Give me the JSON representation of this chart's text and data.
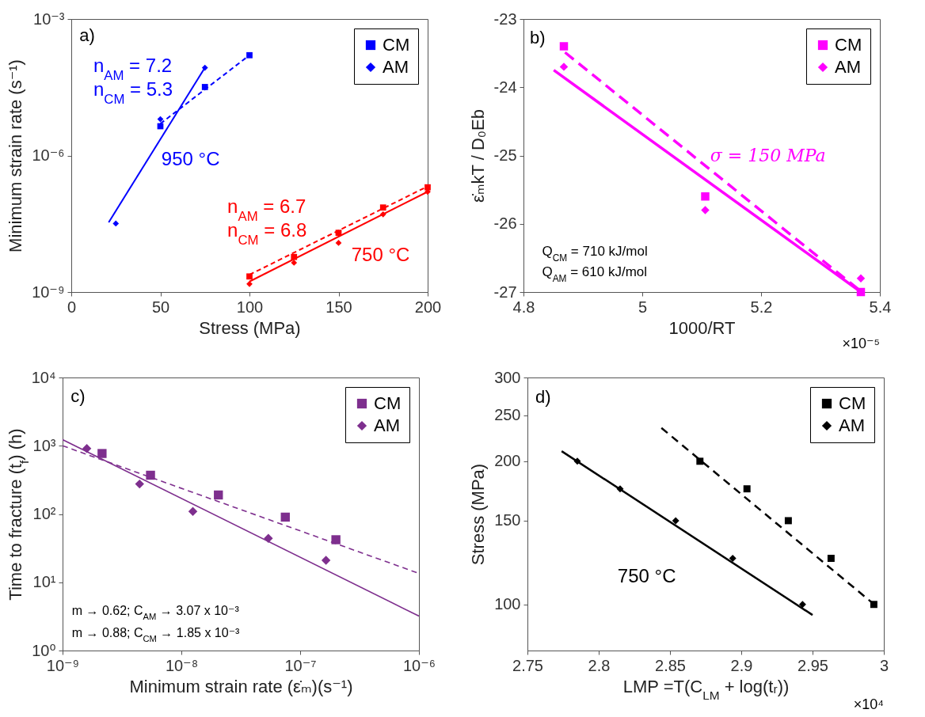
{
  "chart_data": [
    {
      "type": "scatter",
      "xlabel": "Stress (MPa)",
      "ylabel": "Minimum strain rate (s⁻¹)",
      "log": "y",
      "legend": "top right",
      "xlim": [
        0,
        200
      ],
      "ylim": [
        1e-09,
        0.001
      ],
      "xticks": [
        0,
        50,
        100,
        150,
        200
      ],
      "yticks": [
        {
          "value": 1e-09,
          "label": "10⁻⁹"
        },
        {
          "value": 1e-06,
          "label": "10⁻⁶"
        },
        {
          "value": 0.001,
          "label": "10⁻³"
        }
      ],
      "annotations": [
        "a)",
        "n$_{AM}$ = 7.2",
        "n$_{CM}$ = 5.3",
        "950 °C",
        "n$_{AM}$ = 6.7",
        "n$_{CM}$ = 6.8",
        "750 °C"
      ],
      "series": [
        {
          "name": "CM",
          "marker": "square",
          "color": "#0000ff",
          "x": [
            50,
            75,
            100
          ],
          "values": [
            4.4e-06,
            3.2e-05,
            0.00016
          ]
        },
        {
          "name": "AM",
          "marker": "diamond",
          "color": "#0000ff",
          "x": [
            25,
            50,
            75
          ],
          "values": [
            3.2e-08,
            6.3e-06,
            8.5e-05
          ]
        },
        {
          "marker": "square",
          "color": "#ff0000",
          "x": [
            100,
            125,
            150,
            175,
            200
          ],
          "values": [
            2.2e-09,
            5.9e-09,
            2e-08,
            7.2e-08,
            2e-07
          ]
        },
        {
          "marker": "diamond",
          "color": "#ff0000",
          "x": [
            100,
            125,
            150,
            175,
            200
          ],
          "values": [
            1.5e-09,
            4.4e-09,
            1.2e-08,
            5.1e-08,
            1.6e-07
          ]
        },
        {
          "type": "line",
          "line_style": "dashed",
          "color": "#0000ff",
          "x": [
            50,
            100
          ],
          "values": [
            5e-06,
            0.00016
          ]
        },
        {
          "type": "line",
          "line_style": "solid",
          "color": "#0000ff",
          "x": [
            21,
            75
          ],
          "values": [
            3.4e-08,
            8.5e-05
          ]
        },
        {
          "type": "line",
          "line_style": "dashed",
          "color": "#ff0000",
          "x": [
            100,
            200
          ],
          "values": [
            2.4e-09,
            2.1e-07
          ]
        },
        {
          "type": "line",
          "line_style": "solid",
          "color": "#ff0000",
          "x": [
            100,
            200
          ],
          "values": [
            1.7e-09,
            1.6e-07
          ]
        }
      ]
    },
    {
      "type": "scatter",
      "xlabel": "1000/RT",
      "ylabel": "ε̇ₘkT / D₀Eb",
      "legend": "top right",
      "xlim": [
        4.8,
        5.4
      ],
      "ylim": [
        -27,
        -23
      ],
      "xticks": [
        4.8,
        5,
        5.2,
        5.4
      ],
      "yticks": [
        -27,
        -26,
        -25,
        -24,
        -23
      ],
      "annotations": [
        "b)",
        "σ = 150 MPa",
        "Q$_{CM}$ = 710 kJ/mol",
        "Q$_{AM}$ = 610 kJ/mol",
        "×10⁻⁵"
      ],
      "series": [
        {
          "name": "CM",
          "marker": "square",
          "color": "#ff00ff",
          "x": [
            4.868,
            5.106,
            5.368
          ],
          "values": [
            -23.4,
            -25.6,
            -27.0
          ]
        },
        {
          "name": "AM",
          "marker": "diamond",
          "color": "#ff00ff",
          "x": [
            4.868,
            5.106,
            5.368
          ],
          "values": [
            -23.7,
            -25.8,
            -26.8
          ]
        },
        {
          "type": "line",
          "line_style": "dashed",
          "color": "#ff00ff",
          "x": [
            4.87,
            5.368
          ],
          "values": [
            -23.49,
            -26.99
          ]
        },
        {
          "type": "line",
          "line_style": "solid",
          "color": "#ff00ff",
          "x": [
            4.851,
            5.368
          ],
          "values": [
            -23.75,
            -27.0
          ]
        }
      ]
    },
    {
      "type": "scatter",
      "xlabel": "Minimum strain rate (ε̇ₘ)(s⁻¹)",
      "ylabel": "Time to fracture (t$_{f}$) (h)",
      "log": "xy",
      "legend": "top right",
      "xlim": [
        1e-09,
        1e-06
      ],
      "ylim": [
        1,
        10000
      ],
      "xticks": [
        {
          "value": 1e-09,
          "label": "10⁻⁹"
        },
        {
          "value": 1e-08,
          "label": "10⁻⁸"
        },
        {
          "value": 1e-07,
          "label": "10⁻⁷"
        },
        {
          "value": 1e-06,
          "label": "10⁻⁶"
        }
      ],
      "yticks": [
        {
          "value": 1,
          "label": "10⁰"
        },
        {
          "value": 10,
          "label": "10¹"
        },
        {
          "value": 100,
          "label": "10²"
        },
        {
          "value": 1000,
          "label": "10³"
        },
        {
          "value": 10000,
          "label": "10⁴"
        }
      ],
      "annotations": [
        "c)",
        "m → 0.62; C$_{AM}$ → 3.07 x 10⁻³",
        "m → 0.88; C$_{CM}$ → 1.85 x 10⁻³"
      ],
      "series": [
        {
          "name": "CM",
          "marker": "square",
          "color": "#7e2f8e",
          "x": [
            2.15e-09,
            5.5e-09,
            2.05e-08,
            7.5e-08,
            2e-07
          ],
          "values": [
            770,
            370,
            190,
            90,
            42
          ]
        },
        {
          "name": "AM",
          "marker": "diamond",
          "color": "#7e2f8e",
          "x": [
            1.6e-09,
            4.45e-09,
            1.25e-08,
            5.4e-08,
            1.65e-07
          ],
          "values": [
            910,
            275,
            109,
            44,
            21
          ]
        },
        {
          "type": "line",
          "line_style": "dashed",
          "color": "#7e2f8e",
          "x": [
            1e-09,
            1e-06
          ],
          "values": [
            1000,
            13.5
          ]
        },
        {
          "type": "line",
          "line_style": "solid",
          "color": "#7e2f8e",
          "x": [
            1e-09,
            1e-06
          ],
          "values": [
            1230,
            3.2
          ]
        }
      ]
    },
    {
      "type": "scatter",
      "xlabel": "LMP =T(C$_{LM}$ + log(tᵣ))",
      "ylabel": "Stress (MPa)",
      "log": "y",
      "legend": "top right",
      "xlim": [
        2.75,
        3
      ],
      "ylim": [
        80,
        300
      ],
      "xticks": [
        2.75,
        2.8,
        2.85,
        2.9,
        2.95,
        3
      ],
      "yticks": [
        100,
        150,
        200,
        250,
        300
      ],
      "annotations": [
        "d)",
        "750 °C",
        "×10⁴"
      ],
      "series": [
        {
          "name": "CM",
          "marker": "square",
          "color": "#000000",
          "x": [
            2.871,
            2.904,
            2.933,
            2.963,
            2.993
          ],
          "values": [
            200,
            175,
            150,
            125,
            100
          ]
        },
        {
          "name": "AM",
          "marker": "diamond",
          "color": "#000000",
          "x": [
            2.785,
            2.815,
            2.854,
            2.894,
            2.943
          ],
          "values": [
            200,
            175,
            150,
            125,
            100
          ]
        },
        {
          "type": "line",
          "line_style": "dashed",
          "color": "#000000",
          "x": [
            2.844,
            2.995
          ],
          "values": [
            235,
            99
          ]
        },
        {
          "type": "line",
          "line_style": "solid",
          "color": "#000000",
          "x": [
            2.774,
            2.95
          ],
          "values": [
            210,
            95
          ]
        }
      ]
    }
  ]
}
